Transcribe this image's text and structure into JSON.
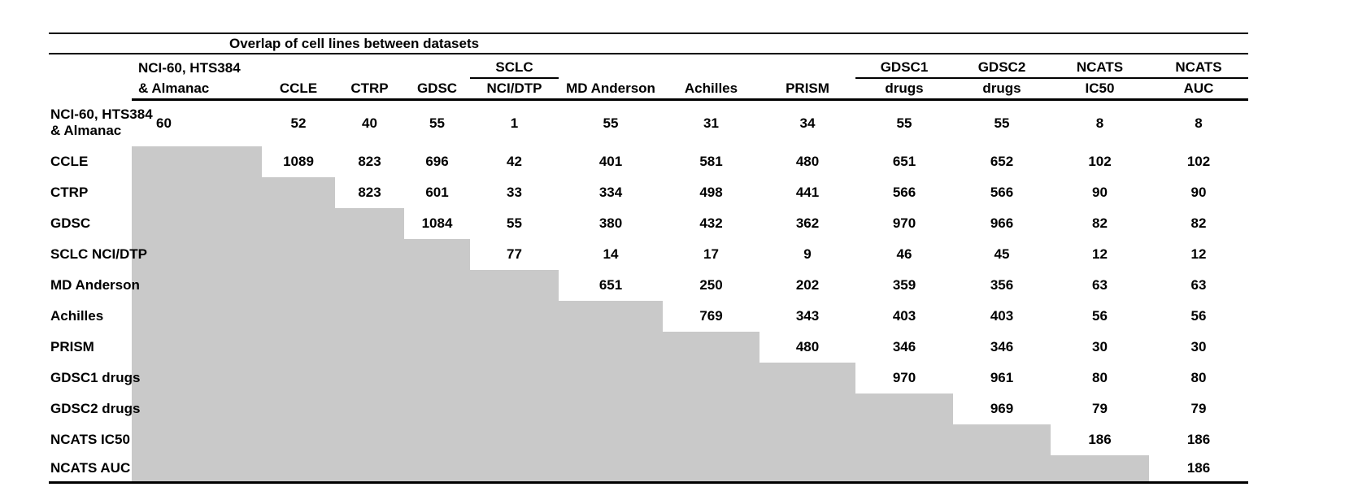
{
  "chart_data": {
    "type": "table",
    "title": "Overlap of cell lines between datasets",
    "header_row_top": [
      "",
      "NCI-60, HTS384",
      "",
      "",
      "",
      "SCLC",
      "",
      "",
      "",
      "GDSC1",
      "GDSC2",
      "NCATS",
      "NCATS"
    ],
    "header_row_bottom": [
      "",
      "& Almanac",
      "CCLE",
      "CTRP",
      "GDSC",
      "NCI/DTP",
      "MD Anderson",
      "Achilles",
      "PRISM",
      "drugs",
      "drugs",
      "IC50",
      "AUC"
    ],
    "rows": [
      {
        "label": "NCI-60, HTS384\n& Almanac",
        "values": [
          60,
          52,
          40,
          55,
          1,
          55,
          31,
          34,
          55,
          55,
          8,
          8
        ]
      },
      {
        "label": "CCLE",
        "values": [
          null,
          1089,
          823,
          696,
          42,
          401,
          581,
          480,
          651,
          652,
          102,
          102
        ]
      },
      {
        "label": "CTRP",
        "values": [
          null,
          null,
          823,
          601,
          33,
          334,
          498,
          441,
          566,
          566,
          90,
          90
        ]
      },
      {
        "label": "GDSC",
        "values": [
          null,
          null,
          null,
          1084,
          55,
          380,
          432,
          362,
          970,
          966,
          82,
          82
        ]
      },
      {
        "label": "SCLC NCI/DTP",
        "values": [
          null,
          null,
          null,
          null,
          77,
          14,
          17,
          9,
          46,
          45,
          12,
          12
        ]
      },
      {
        "label": "MD Anderson",
        "values": [
          null,
          null,
          null,
          null,
          null,
          651,
          250,
          202,
          359,
          356,
          63,
          63
        ]
      },
      {
        "label": "Achilles",
        "values": [
          null,
          null,
          null,
          null,
          null,
          null,
          769,
          343,
          403,
          403,
          56,
          56
        ]
      },
      {
        "label": "PRISM",
        "values": [
          null,
          null,
          null,
          null,
          null,
          null,
          null,
          480,
          346,
          346,
          30,
          30
        ]
      },
      {
        "label": "GDSC1 drugs",
        "values": [
          null,
          null,
          null,
          null,
          null,
          null,
          null,
          null,
          970,
          961,
          80,
          80
        ]
      },
      {
        "label": "GDSC2 drugs",
        "values": [
          null,
          null,
          null,
          null,
          null,
          null,
          null,
          null,
          null,
          969,
          79,
          79
        ]
      },
      {
        "label": "NCATS IC50",
        "values": [
          null,
          null,
          null,
          null,
          null,
          null,
          null,
          null,
          null,
          null,
          186,
          186
        ]
      },
      {
        "label": "NCATS AUC",
        "values": [
          null,
          null,
          null,
          null,
          null,
          null,
          null,
          null,
          null,
          null,
          null,
          186
        ]
      }
    ],
    "shading": "lower_triangle",
    "colors": {
      "shade": "#c9c9c9",
      "text": "#000000",
      "rules": "#000000",
      "background": "#ffffff"
    },
    "layout": {
      "legend": false,
      "grid": false
    }
  }
}
